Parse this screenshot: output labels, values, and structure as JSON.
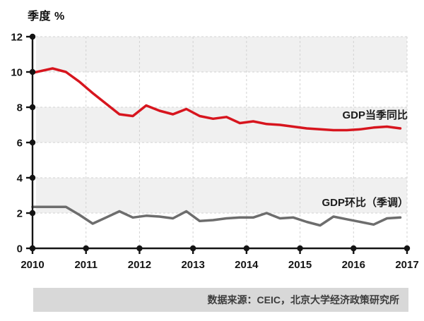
{
  "title": "季度 %",
  "series_labels": {
    "yoy": "GDP当季同比",
    "qoq": "GDP环比（季调）"
  },
  "source_note": "数据来源：CEIC，北京大学经济政策研究所",
  "colors": {
    "line_yoy": "#d7151e",
    "line_qoq": "#6d6d6d",
    "band": "#f0f0f0",
    "grid": "#d2d2d2",
    "axis": "#141414",
    "source_bar_bg": "#d8d8d8"
  },
  "chart_data": {
    "type": "line",
    "title": "季度 %",
    "xlabel": "",
    "ylabel": "季度 %",
    "ylim": [
      0,
      12
    ],
    "y_ticks": [
      0,
      2,
      4,
      6,
      8,
      10,
      12
    ],
    "x_tick_labels": [
      "2010",
      "2011",
      "2012",
      "2013",
      "2014",
      "2015",
      "2016",
      "2017"
    ],
    "x_unit": "quarter",
    "x_quarters_start": "2010Q1",
    "x_quarters_end": "2016Q4",
    "points_per_year": 4,
    "grid": "dashed",
    "band_fill_tops": [
      12,
      8,
      4
    ],
    "legend_position": "inline-right",
    "series": [
      {
        "name": "GDP当季同比",
        "color": "#d7151e",
        "values": [
          9.95,
          10.2,
          10.0,
          9.45,
          8.8,
          8.2,
          7.6,
          7.5,
          8.1,
          7.8,
          7.6,
          7.9,
          7.5,
          7.35,
          7.45,
          7.1,
          7.2,
          7.05,
          7.0,
          6.9,
          6.8,
          6.75,
          6.7,
          6.7,
          6.75,
          6.85,
          6.9,
          6.8
        ]
      },
      {
        "name": "GDP环比（季调）",
        "color": "#6d6d6d",
        "values": [
          2.35,
          2.35,
          2.35,
          1.9,
          1.4,
          1.75,
          2.1,
          1.75,
          1.85,
          1.8,
          1.7,
          2.1,
          1.55,
          1.6,
          1.7,
          1.75,
          1.75,
          2.0,
          1.7,
          1.75,
          1.5,
          1.3,
          1.8,
          1.65,
          1.5,
          1.35,
          1.7,
          1.75
        ]
      }
    ]
  }
}
